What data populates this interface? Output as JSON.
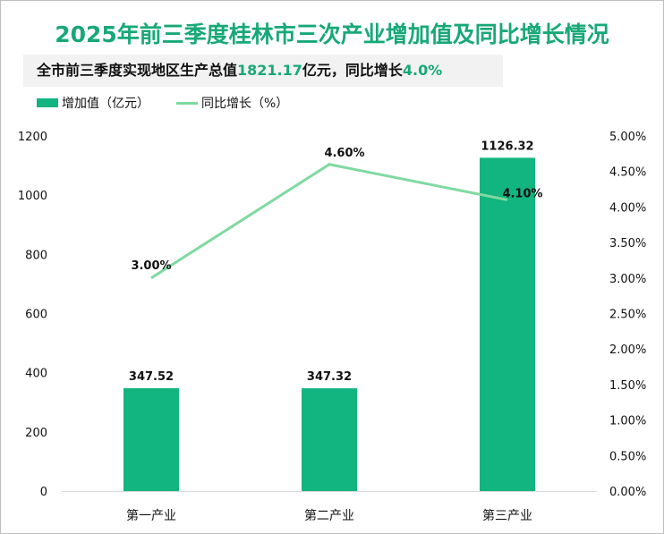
{
  "title": "2025年前三季度桂林市三次产业增加值及同比增长情况",
  "subtitle": {
    "prefix": "全市前三季度实现地区生产总值",
    "gdp": "1821.17",
    "unit": "亿元，同比增长",
    "growth": "4.0%"
  },
  "colors": {
    "bar": "#12b47f",
    "line": "#7fd9a0",
    "title": "#18a878"
  },
  "chart_data": {
    "type": "bar+line",
    "categories": [
      "第一产业",
      "第二产业",
      "第三产业"
    ],
    "series": [
      {
        "name": "增加值（亿元）",
        "type": "bar",
        "axis": "left",
        "values": [
          347.52,
          347.32,
          1126.32
        ],
        "labels": [
          "347.52",
          "347.32",
          "1126.32"
        ]
      },
      {
        "name": "同比增长（%）",
        "type": "line",
        "axis": "right",
        "values": [
          3.0,
          4.6,
          4.1
        ],
        "labels": [
          "3.00%",
          "4.60%",
          "4.10%"
        ]
      }
    ],
    "y_left": {
      "range": [
        0,
        1200
      ],
      "ticks": [
        "0",
        "200",
        "400",
        "600",
        "800",
        "1000",
        "1200"
      ]
    },
    "y_right": {
      "range": [
        0,
        5
      ],
      "ticks": [
        "0.00%",
        "0.50%",
        "1.00%",
        "1.50%",
        "2.00%",
        "2.50%",
        "3.00%",
        "3.50%",
        "4.00%",
        "4.50%",
        "5.00%"
      ]
    },
    "legend": "top-left",
    "grid": false
  }
}
